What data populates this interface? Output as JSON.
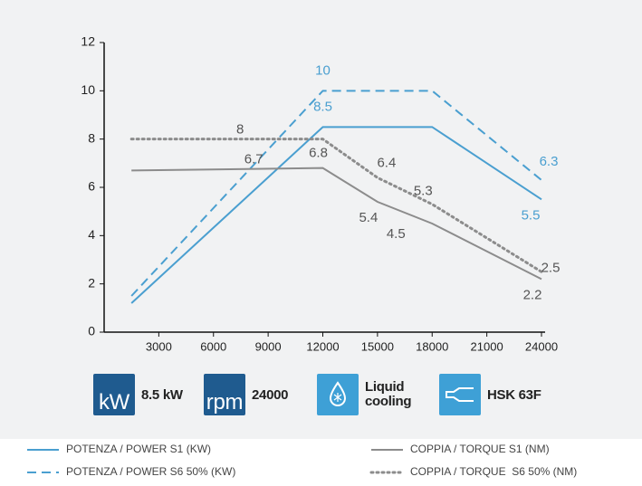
{
  "chart_data": {
    "type": "line",
    "xlim": [
      0,
      24000
    ],
    "xticks": [
      3000,
      6000,
      9000,
      12000,
      15000,
      18000,
      21000,
      24000
    ],
    "ylim": [
      0,
      12
    ],
    "yticks": [
      0,
      2,
      4,
      6,
      8,
      10,
      12
    ],
    "grid": false,
    "series": [
      {
        "name": "POTENZA / POWER S1 (KW)",
        "color": "#4a9fd0",
        "style": "solid",
        "x": [
          1500,
          12000,
          18000,
          24000
        ],
        "values": [
          1.2,
          8.5,
          8.5,
          5.5
        ]
      },
      {
        "name": "POTENZA / POWER S6 50% (KW)",
        "color": "#4a9fd0",
        "style": "dashed",
        "x": [
          1500,
          12000,
          18000,
          24000
        ],
        "values": [
          1.5,
          10,
          10,
          6.3
        ]
      },
      {
        "name": "COPPIA / TORQUE S1 (NM)",
        "color": "#8c8c8c",
        "style": "solid",
        "x": [
          1500,
          12000,
          15000,
          18000,
          24000
        ],
        "values": [
          6.7,
          6.8,
          5.4,
          4.5,
          2.2
        ]
      },
      {
        "name": "COPPIA / TORQUE  S6 50% (NM)",
        "color": "#8c8c8c",
        "style": "dotted",
        "x": [
          1500,
          12000,
          15000,
          18000,
          24000
        ],
        "values": [
          8,
          8,
          6.4,
          5.3,
          2.5
        ]
      }
    ]
  },
  "features": [
    {
      "icon": "kW",
      "label": "8.5 kW"
    },
    {
      "icon": "rpm",
      "label": "24000"
    },
    {
      "label": "Liquid cooling"
    },
    {
      "label": "HSK 63F"
    }
  ]
}
